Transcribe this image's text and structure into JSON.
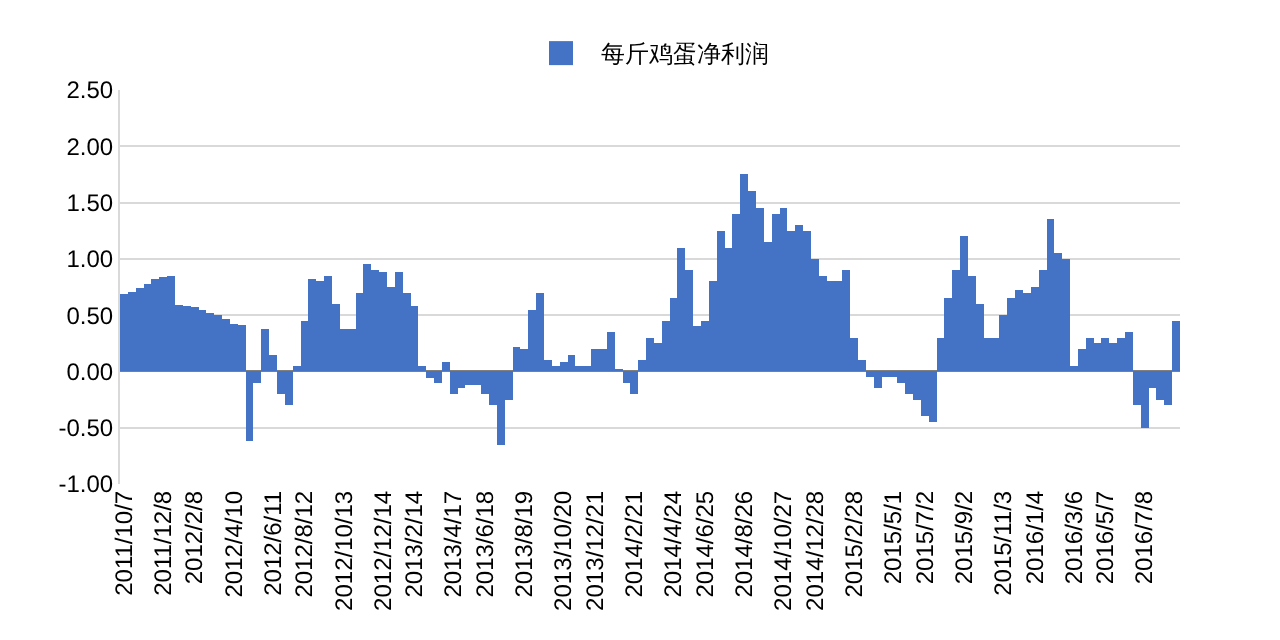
{
  "chart_data": {
    "type": "bar",
    "categories": [
      "2011/10/7",
      null,
      null,
      null,
      null,
      "2011/12/8",
      null,
      null,
      null,
      "2012/2/8",
      null,
      null,
      null,
      null,
      "2012/4/10",
      null,
      null,
      null,
      null,
      "2012/6/11",
      null,
      null,
      null,
      "2012/8/12",
      null,
      null,
      null,
      null,
      "2012/10/13",
      null,
      null,
      null,
      null,
      "2012/12/14",
      null,
      null,
      null,
      "2013/2/14",
      null,
      null,
      null,
      null,
      "2013/4/17",
      null,
      null,
      null,
      "2013/6/18",
      null,
      null,
      null,
      null,
      "2013/8/19",
      null,
      null,
      null,
      null,
      "2013/10/20",
      null,
      null,
      null,
      "2013/12/21",
      null,
      null,
      null,
      null,
      "2014/2/21",
      null,
      null,
      null,
      null,
      "2014/4/24",
      null,
      null,
      null,
      "2014/6/25",
      null,
      null,
      null,
      null,
      "2014/8/26",
      null,
      null,
      null,
      null,
      "2014/10/27",
      null,
      null,
      null,
      "2014/12/28",
      null,
      null,
      null,
      null,
      "2015/2/28",
      null,
      null,
      null,
      null,
      "2015/5/1",
      null,
      null,
      null,
      "2015/7/2",
      null,
      null,
      null,
      null,
      "2015/9/2",
      null,
      null,
      null,
      null,
      "2015/11/3",
      null,
      null,
      null,
      "2016/1/4",
      null,
      null,
      null,
      null,
      "2016/3/6",
      null,
      null,
      null,
      "2016/5/7",
      null,
      null,
      null,
      null,
      "2016/7/8",
      null,
      null,
      null,
      null
    ],
    "series": [
      {
        "name": "每斤鸡蛋净利润",
        "color": "#4472c4",
        "values": [
          0.69,
          0.71,
          0.74,
          0.78,
          0.82,
          0.84,
          0.85,
          0.59,
          0.58,
          0.57,
          0.55,
          0.52,
          0.5,
          0.47,
          0.42,
          0.41,
          -0.62,
          -0.1,
          0.38,
          0.15,
          -0.2,
          -0.3,
          0.05,
          0.45,
          0.82,
          0.8,
          0.85,
          0.6,
          0.38,
          0.38,
          0.7,
          0.95,
          0.9,
          0.88,
          0.75,
          0.88,
          0.7,
          0.58,
          0.05,
          -0.06,
          -0.1,
          0.08,
          -0.2,
          -0.15,
          -0.12,
          -0.12,
          -0.2,
          -0.3,
          -0.65,
          -0.25,
          0.22,
          0.2,
          0.55,
          0.7,
          0.1,
          0.05,
          0.08,
          0.15,
          0.05,
          0.05,
          0.2,
          0.2,
          0.35,
          0.02,
          -0.1,
          -0.2,
          0.1,
          0.3,
          0.25,
          0.45,
          0.65,
          1.1,
          0.9,
          0.4,
          0.45,
          0.8,
          1.25,
          1.1,
          1.4,
          1.75,
          1.6,
          1.45,
          1.15,
          1.4,
          1.45,
          1.25,
          1.3,
          1.25,
          1.0,
          0.85,
          0.8,
          0.8,
          0.9,
          0.3,
          0.1,
          -0.05,
          -0.15,
          -0.05,
          -0.05,
          -0.1,
          -0.2,
          -0.25,
          -0.4,
          -0.45,
          0.3,
          0.65,
          0.9,
          1.2,
          0.85,
          0.6,
          0.3,
          0.3,
          0.5,
          0.65,
          0.72,
          0.7,
          0.75,
          0.9,
          1.35,
          1.05,
          1.0,
          0.05,
          0.2,
          0.3,
          0.25,
          0.3,
          0.25,
          0.3,
          0.35,
          -0.3,
          -0.5,
          -0.15,
          -0.25,
          -0.3,
          0.45
        ]
      }
    ],
    "ylim": [
      -1,
      2.5
    ],
    "yticks": [
      {
        "value": -1,
        "label": "-1.00"
      },
      {
        "value": -0.5,
        "label": "-0.50"
      },
      {
        "value": 0,
        "label": "0.00"
      },
      {
        "value": 0.5,
        "label": "0.50"
      },
      {
        "value": 1,
        "label": "1.00"
      },
      {
        "value": 1.5,
        "label": "1.50"
      },
      {
        "value": 2,
        "label": "2.00"
      },
      {
        "value": 2.5,
        "label": "2.50"
      }
    ],
    "grid": "y",
    "legend": "top"
  }
}
